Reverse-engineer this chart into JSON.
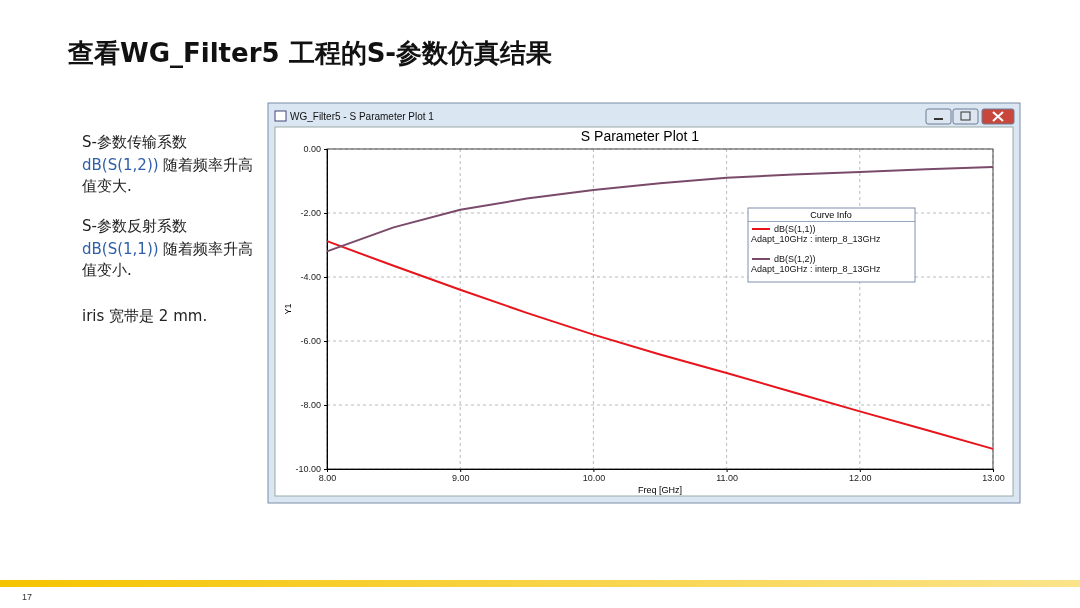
{
  "chart_data": {
    "type": "line",
    "title": "S Parameter Plot 1",
    "subtitle": "查看WG_Filter5 工程的S-参数仿真结果",
    "xlabel": "Freq [GHz]",
    "ylabel": "Y1",
    "legend_title": "Curve Info",
    "x": [
      8,
      8.5,
      9,
      9.5,
      10,
      10.5,
      11,
      11.5,
      12,
      12.5,
      13
    ],
    "series": [
      {
        "name": "dB(S(1,1)) Adapt_10GHz : interp_8_13GHz",
        "color": "#e8141c",
        "values": [
          -2.88,
          -3.65,
          -4.4,
          -5.12,
          -5.8,
          -6.42,
          -7.0,
          -7.6,
          -8.2,
          -8.78,
          -9.37
        ]
      },
      {
        "name": "dB(S(1,2)) Adapt_10GHz : interp_8_13GHz",
        "color": "#7a4a6a",
        "values": [
          -3.2,
          -2.45,
          -1.9,
          -1.55,
          -1.28,
          -1.07,
          -0.9,
          -0.8,
          -0.72,
          -0.63,
          -0.56
        ]
      }
    ],
    "xlim": [
      8,
      13
    ],
    "ylim": [
      -10,
      0
    ],
    "xticks": [
      {
        "value": 8,
        "label": "8.00"
      },
      {
        "value": 9,
        "label": "9.00"
      },
      {
        "value": 10,
        "label": "10.00"
      },
      {
        "value": 11,
        "label": "11.00"
      },
      {
        "value": 12,
        "label": "12.00"
      },
      {
        "value": 13,
        "label": "13.00"
      }
    ],
    "yticks": [
      {
        "value": -10,
        "label": "-10.00"
      },
      {
        "value": -8,
        "label": "-8.00"
      },
      {
        "value": -6,
        "label": "-6.00"
      },
      {
        "value": -4,
        "label": "-4.00"
      },
      {
        "value": -2,
        "label": "-2.00"
      },
      {
        "value": 0,
        "label": "0.00"
      }
    ],
    "grid": true,
    "legend": "right",
    "marker": "none",
    "line_style": "solid",
    "annotations": [
      "WG_Filter5 - S Parameter Plot 1",
      "S-参数传输系数",
      "dB(S(1,2)) 随着频率升高值变大.",
      "S-参数反射系数",
      "dB(S(1,1)) 随着频率升高值变小.",
      "iris 宽带是 2 mm.",
      "17"
    ]
  }
}
